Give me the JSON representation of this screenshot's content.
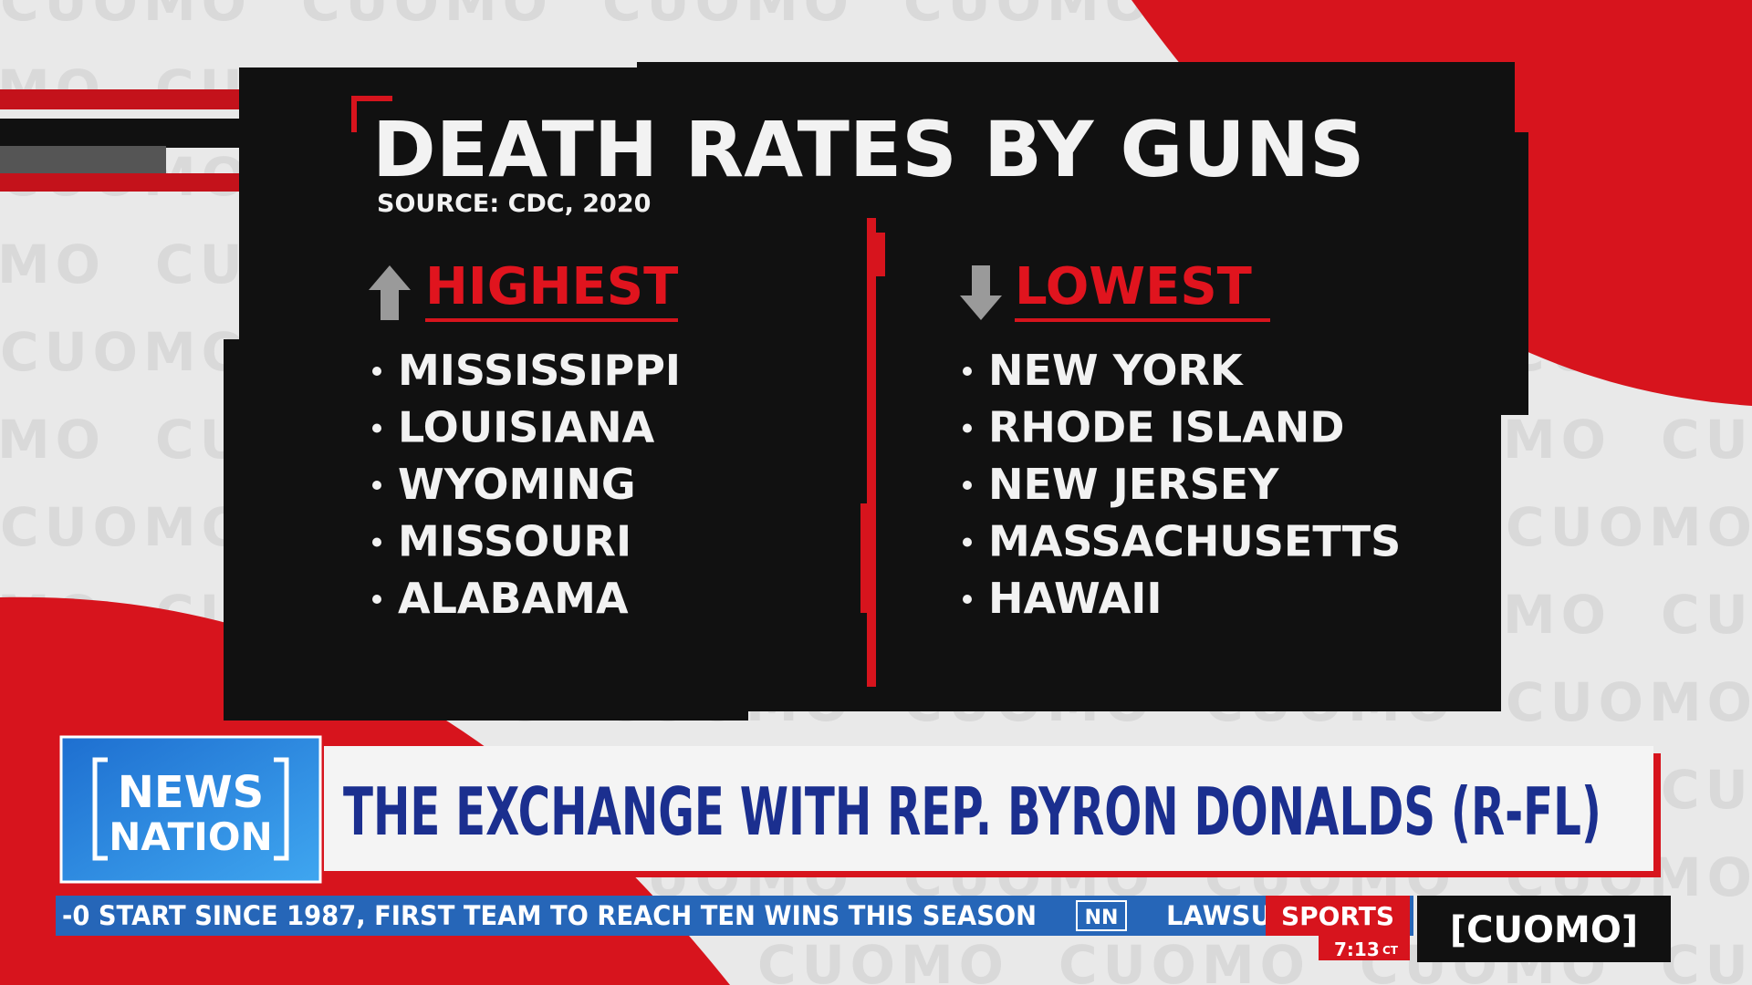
{
  "watermark": "CUOMO",
  "graphic": {
    "title": "DEATH RATES BY GUNS",
    "source": "SOURCE: CDC, 2020",
    "highest": {
      "heading": "HIGHEST",
      "items": [
        "MISSISSIPPI",
        "LOUISIANA",
        "WYOMING",
        "MISSOURI",
        "ALABAMA"
      ]
    },
    "lowest": {
      "heading": "LOWEST",
      "items": [
        "NEW YORK",
        "RHODE ISLAND",
        "NEW JERSEY",
        "MASSACHUSETTS",
        "HAWAII"
      ]
    }
  },
  "lower_third": {
    "logo": [
      "NEWS",
      "NATION"
    ],
    "headline": "THE EXCHANGE WITH REP. BYRON DONALDS (R-FL)"
  },
  "ticker": {
    "text": "-0 START SINCE 1987, FIRST TEAM TO REACH TEN WINS THIS SEASON",
    "network": "NN",
    "next": "LAWSU",
    "section": "SPORTS",
    "time": "7:13",
    "zone": "CT",
    "show": "[CUOMO]"
  }
}
